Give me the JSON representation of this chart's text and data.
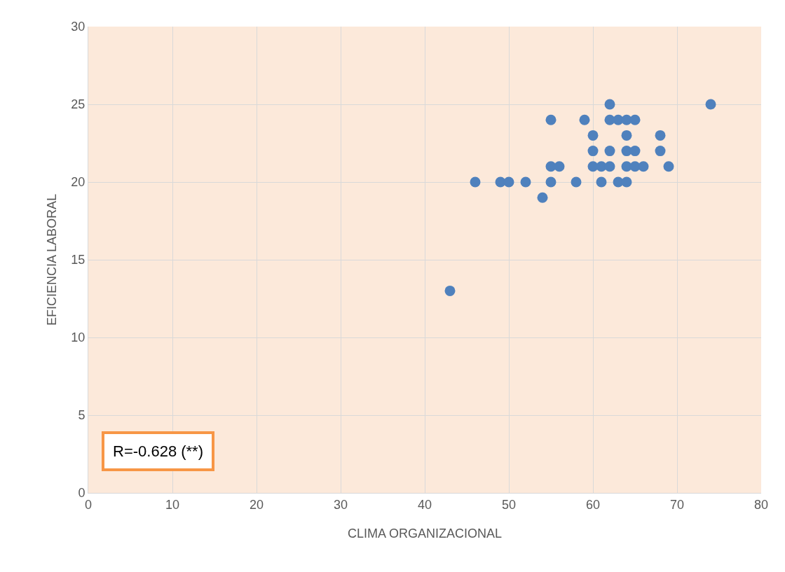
{
  "chart_data": {
    "type": "scatter",
    "xlabel": "CLIMA ORGANIZACIONAL",
    "ylabel": "EFICIENCIA LABORAL",
    "x": [
      62,
      74,
      55,
      59,
      62,
      63,
      64,
      65,
      60,
      64,
      68,
      60,
      62,
      64,
      65,
      68,
      55,
      56,
      60,
      61,
      62,
      64,
      65,
      66,
      69,
      46,
      49,
      50,
      52,
      55,
      58,
      61,
      63,
      64,
      54,
      43
    ],
    "values": [
      25,
      25,
      24,
      24,
      24,
      24,
      24,
      24,
      23,
      23,
      23,
      22,
      22,
      22,
      22,
      22,
      21,
      21,
      21,
      21,
      21,
      21,
      21,
      21,
      21,
      20,
      20,
      20,
      20,
      20,
      20,
      20,
      20,
      20,
      19,
      13
    ],
    "color": "#4f81bd",
    "marker": "circle",
    "xlim": [
      0,
      80
    ],
    "xticks": [
      0,
      10,
      20,
      30,
      40,
      50,
      60,
      70,
      80
    ],
    "ylim": [
      0,
      30
    ],
    "yticks": [
      0,
      5,
      10,
      15,
      20,
      25,
      30
    ],
    "grid": true,
    "annotations": [
      "R=-0.628 (**)"
    ]
  }
}
